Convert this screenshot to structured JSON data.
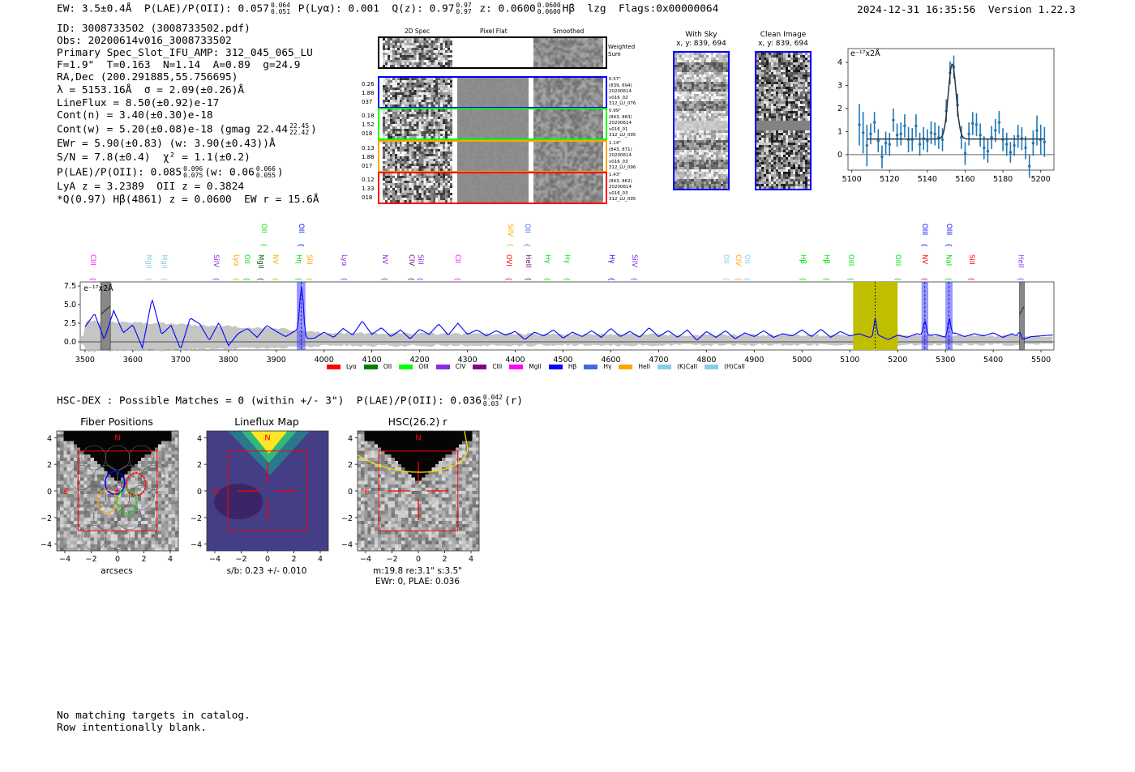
{
  "header": {
    "ew": "EW: 3.5±0.4Å",
    "plae": "P(LAE)/P(OII): 0.057",
    "plae_hi": "0.064",
    "plae_lo": "0.051",
    "plya": "P(Lyα): 0.001",
    "qz": "Q(z): 0.97",
    "qz_hi": "0.97",
    "qz_lo": "0.97",
    "z": "z: 0.0600",
    "z_hi": "0.0600",
    "z_lo": "0.0600",
    "line": "Hβ",
    "tag": "lzg",
    "flags": "Flags:0x00000064",
    "timestamp": "2024-12-31 16:35:56",
    "version": "Version 1.22.3"
  },
  "info": {
    "id": "ID: 3008733502 (3008733502.pdf)",
    "obs": "Obs: 20200614v016_3008733502",
    "primary": "Primary Spec_Slot_IFU_AMP: 312_045_065_LU",
    "fiber": "F=1.9\"  T=0.163  N=1.14  A=0.89  g=24.9",
    "radec": "RA,Dec (200.291885,55.756695)",
    "lambda": "λ = 5153.16Å  σ = 2.09(±0.26)Å",
    "lineflux": "LineFlux = 8.50(±0.92)e-17",
    "contn": "Cont(n) = 3.40(±0.30)e-18",
    "contw": "Cont(w) = 5.20(±0.08)e-18 (gmag 22.44",
    "contw_hi": "22.45",
    "contw_lo": "22.42",
    "contw_end": ")",
    "ewr": "EWr = 5.90(±0.83) (w: 3.90(±0.43))Å",
    "sn": "S/N = 7.8(±0.4)  χ² = 1.1(±0.2)",
    "plae": "P(LAE)/P(OII): 0.085",
    "plae_hi": "0.096",
    "plae_lo": "0.075",
    "plae_mid": "(w: 0.06",
    "plaew_hi": "0.066",
    "plaew_lo": "0.055",
    "plae_end": ")",
    "z": "LyA z = 3.2389  OII z = 0.3824",
    "q": "*Q(0.97) Hβ(4861) z = 0.0600  EW r = 15.6Å"
  },
  "spec2d": {
    "columns": [
      "2D Spec",
      "Pixel Flat",
      "Smoothed"
    ],
    "weighted_sum": "Weighted Sum",
    "rows": [
      {
        "color": "#0000ff",
        "left": [
          "0.26",
          "1.88",
          "037"
        ],
        "right": [
          "0.57\"",
          "(839, 694)",
          "20200614",
          "v016_02",
          "312_LU_076"
        ]
      },
      {
        "color": "#00ff00",
        "left": [
          "0.18",
          "1.52",
          "018"
        ],
        "right": [
          "0.99\"",
          "(843, 863)",
          "20200614",
          "v016_01",
          "312_LU_095"
        ]
      },
      {
        "color": "#ffa500",
        "left": [
          "0.13",
          "1.88",
          "017"
        ],
        "right": [
          "1.14\"",
          "(843, 871)",
          "20200614",
          "v016_03",
          "312_LU_096"
        ]
      },
      {
        "color": "#ff0000",
        "left": [
          "0.12",
          "1.33",
          "018"
        ],
        "right": [
          "1.43\"",
          "(843, 862)",
          "20200614",
          "v016_03",
          "312_LU_095"
        ]
      }
    ]
  },
  "cutouts": {
    "with_sky": {
      "title": "With Sky",
      "xy": "x, y: 839, 694"
    },
    "clean": {
      "title": "Clean Image",
      "xy": "x, y: 839, 694"
    }
  },
  "chart_data": [
    {
      "type": "scatter",
      "title": "",
      "ylabel": "e⁻¹⁷x2Å",
      "xlim": [
        5098,
        5207
      ],
      "ylim": [
        -0.67,
        4.6
      ],
      "xticks": [
        "5100",
        "5120",
        "5140",
        "5160",
        "5180",
        "5200"
      ],
      "yticks": [
        "0",
        "1",
        "2",
        "3",
        "4"
      ],
      "x_start": 5104,
      "x_step": 2,
      "values": [
        1.3,
        0.95,
        0.4,
        0.9,
        1.4,
        0.6,
        -0.1,
        0.5,
        0.45,
        1.5,
        0.85,
        0.9,
        1.25,
        0.65,
        0.65,
        1.25,
        0.45,
        0.7,
        0.6,
        0.95,
        0.9,
        0.75,
        0.65,
        1.9,
        3.55,
        3.8,
        2.15,
        0.75,
        0.05,
        0.9,
        1.35,
        1.3,
        0.85,
        0.3,
        0.15,
        0.75,
        1.05,
        1.4,
        0.65,
        0.45,
        0.1,
        0.4,
        0.8,
        0.7,
        0.3,
        -0.5,
        0.5,
        1.05,
        0.65,
        0.55
      ],
      "errors": [
        0.9,
        0.9,
        0.9,
        0.45,
        0.45,
        0.5,
        0.5,
        0.5,
        0.5,
        0.5,
        0.5,
        0.5,
        0.5,
        0.55,
        0.5,
        0.5,
        0.5,
        0.5,
        0.5,
        0.5,
        0.5,
        0.5,
        0.5,
        0.5,
        0.5,
        0.5,
        0.5,
        0.5,
        0.5,
        0.5,
        0.5,
        0.5,
        0.5,
        0.5,
        0.5,
        0.5,
        0.5,
        0.5,
        0.5,
        0.5,
        0.45,
        0.45,
        0.5,
        0.5,
        0.5,
        0.5,
        0.55,
        0.65,
        0.65,
        0.65
      ],
      "fit": {
        "continuum": 0.68,
        "center": 5153.16,
        "amplitude": 3.25,
        "sigma": 2.09,
        "range": [
          5108,
          5202
        ]
      }
    },
    {
      "type": "line",
      "title": "",
      "ylabel": "e⁻¹⁷x2Å",
      "xlim": [
        3490,
        5527
      ],
      "ylim": [
        -1.09,
        8.05
      ],
      "xticks": [
        "3500",
        "3600",
        "3700",
        "3800",
        "3900",
        "4000",
        "4100",
        "4200",
        "4300",
        "4400",
        "4500",
        "4600",
        "4700",
        "4800",
        "4900",
        "5000",
        "5100",
        "5200",
        "5300",
        "5400",
        "5500"
      ],
      "yticks": [
        "0.0",
        "2.5",
        "5.0",
        "7.5"
      ],
      "x_start": 3500,
      "x_step": 20,
      "values": [
        2.0,
        3.8,
        0.3,
        4.2,
        1.2,
        2.3,
        -0.8,
        5.8,
        1.0,
        2.2,
        -1.0,
        3.2,
        2.4,
        0.2,
        2.6,
        -0.5,
        1.1,
        1.8,
        0.6,
        2.2,
        1.4,
        0.7,
        1.5,
        0.4,
        0.5,
        1.3,
        0.6,
        1.8,
        0.9,
        2.8,
        1.0,
        1.9,
        0.7,
        1.6,
        0.4,
        1.7,
        1.0,
        2.4,
        0.9,
        2.5,
        1.0,
        1.6,
        0.8,
        1.5,
        0.9,
        1.4,
        0.3,
        1.3,
        0.8,
        1.6,
        0.5,
        1.3,
        0.7,
        1.5,
        0.6,
        1.8,
        0.7,
        1.4,
        0.6,
        1.9,
        0.7,
        1.5,
        0.6,
        1.6,
        0.2,
        1.4,
        0.6,
        1.5,
        0.4,
        1.2,
        0.7,
        1.5,
        0.6,
        1.1,
        0.8,
        1.6,
        0.7,
        1.7,
        0.6,
        1.4,
        0.8,
        1.1,
        0.6,
        0.9,
        0.3,
        0.9,
        0.6,
        1.1,
        0.8,
        1.0,
        0.6,
        1.2,
        0.7,
        1.1,
        0.8,
        1.2,
        0.6,
        1.1,
        0.3,
        0.7,
        0.8,
        0.9
      ],
      "peaks": [
        {
          "center": 3953,
          "amplitude": 6.5,
          "sigma": 4
        },
        {
          "center": 5153,
          "amplitude": 2.4,
          "sigma": 2.5
        },
        {
          "center": 5257,
          "amplitude": 2.0,
          "sigma": 3
        },
        {
          "center": 5308,
          "amplitude": 2.3,
          "sigma": 3
        },
        {
          "center": 5455,
          "amplitude": 0.8,
          "sigma": 3
        }
      ],
      "error_band": [
        [
          3500,
          2.8
        ],
        [
          3700,
          2.4
        ],
        [
          3940,
          1.6
        ],
        [
          3990,
          1.2
        ],
        [
          4500,
          1.0
        ],
        [
          5000,
          0.9
        ],
        [
          5527,
          0.8
        ]
      ],
      "highlight_band": {
        "range": [
          5107,
          5200
        ],
        "color": "#bfbf00",
        "center": 5153
      },
      "line_bands": [
        [
          3943,
          3961
        ],
        [
          5250,
          5264
        ],
        [
          5300,
          5315
        ]
      ],
      "masked_bands": [
        [
          3533,
          3553
        ],
        [
          5455,
          5465
        ]
      ],
      "line_labels_top": [
        {
          "label": "OII",
          "wave": 3875,
          "color": "#00dd00"
        },
        {
          "label": "OII",
          "wave": 3953,
          "color": "#0000ff"
        },
        {
          "label": "SiIV",
          "wave": 4391,
          "color": "#ffa500"
        },
        {
          "label": "OII",
          "wave": 4426,
          "color": "#4169e1"
        },
        {
          "label": "OIII",
          "wave": 5257,
          "color": "#0000ff"
        },
        {
          "label": "OIII",
          "wave": 5308,
          "color": "#0000ff"
        }
      ],
      "line_labels": [
        {
          "label": "CIII",
          "wave": 3517,
          "color": "#ff00ff"
        },
        {
          "label": "MgII",
          "wave": 3634,
          "color": "#87ceeb"
        },
        {
          "label": "MgII",
          "wave": 3666,
          "color": "#87ceeb"
        },
        {
          "label": "SiIV",
          "wave": 3775,
          "color": "#8a2be2"
        },
        {
          "label": "Lyα",
          "wave": 3817,
          "color": "#ffa500"
        },
        {
          "label": "OII",
          "wave": 3839,
          "color": "#00dd00"
        },
        {
          "label": "MgII",
          "wave": 3868,
          "color": "#006400"
        },
        {
          "label": "NV",
          "wave": 3899,
          "color": "#ffa500"
        },
        {
          "label": "Hη",
          "wave": 3948,
          "color": "#00dd00"
        },
        {
          "label": "SiII",
          "wave": 3970,
          "color": "#ffa500"
        },
        {
          "label": "Lyα",
          "wave": 4043,
          "color": "#8a2be2"
        },
        {
          "label": "NV",
          "wave": 4128,
          "color": "#8a2be2"
        },
        {
          "label": "CIV",
          "wave": 4184,
          "color": "#800080"
        },
        {
          "label": "SiII",
          "wave": 4202,
          "color": "#8a2be2"
        },
        {
          "label": "CII",
          "wave": 4280,
          "color": "#ff00ff"
        },
        {
          "label": "OVI",
          "wave": 4387,
          "color": "#ff0000"
        },
        {
          "label": "HeII",
          "wave": 4428,
          "color": "#800080"
        },
        {
          "label": "Hγ",
          "wave": 4469,
          "color": "#00dd00"
        },
        {
          "label": "Hγ",
          "wave": 4509,
          "color": "#00dd00"
        },
        {
          "label": "Hγ",
          "wave": 4603,
          "color": "#0000ff"
        },
        {
          "label": "SiIV",
          "wave": 4650,
          "color": "#8a2be2"
        },
        {
          "label": "OII",
          "wave": 4842,
          "color": "#87ceeb"
        },
        {
          "label": "CIV",
          "wave": 4867,
          "color": "#ffa500"
        },
        {
          "label": "OII",
          "wave": 4886,
          "color": "#87ceeb"
        },
        {
          "label": "Hβ",
          "wave": 5003,
          "color": "#00dd00"
        },
        {
          "label": "Hβ",
          "wave": 5052,
          "color": "#00dd00"
        },
        {
          "label": "OIII",
          "wave": 5103,
          "color": "#00dd00"
        },
        {
          "label": "OIII",
          "wave": 5201,
          "color": "#00dd00"
        },
        {
          "label": "NV",
          "wave": 5257,
          "color": "#ff0000"
        },
        {
          "label": "NaI",
          "wave": 5307,
          "color": "#00dd00"
        },
        {
          "label": "SiII",
          "wave": 5356,
          "color": "#ff0000"
        },
        {
          "label": "HeII",
          "wave": 5458,
          "color": "#8a2be2"
        }
      ],
      "legend": [
        {
          "label": "Lyα",
          "color": "#ff0000"
        },
        {
          "label": "OII",
          "color": "#008000"
        },
        {
          "label": "OIII",
          "color": "#00ff00"
        },
        {
          "label": "CIV",
          "color": "#8a2be2"
        },
        {
          "label": "CIII",
          "color": "#800080"
        },
        {
          "label": "MgII",
          "color": "#ff00ff"
        },
        {
          "label": "Hβ",
          "color": "#0000ff"
        },
        {
          "label": "Hγ",
          "color": "#4169e1"
        },
        {
          "label": "HeII",
          "color": "#ffa500"
        },
        {
          "label": "(K)CaII",
          "color": "#87ceeb"
        },
        {
          "label": "(H)CaII",
          "color": "#87ceeb"
        }
      ]
    }
  ],
  "hsc": {
    "summary": "HSC-DEX : Possible Matches = 0 (within +/- 3\")  P(LAE)/P(OII): 0.036",
    "hi": "0.042",
    "lo": "0.03",
    "end": "(r)",
    "axis_ticks": [
      "4",
      "2",
      "0",
      "−2",
      "−4"
    ],
    "x_ticks": [
      "−4",
      "−2",
      "0",
      "2",
      "4"
    ],
    "north": "N",
    "east": "E",
    "panels": [
      {
        "title": "Fiber Positions",
        "caption1": "arcsecs",
        "caption2": ""
      },
      {
        "title": "Lineflux Map",
        "caption1": "s/b: 0.23 +/- 0.010",
        "caption2": ""
      },
      {
        "title": "HSC(26.2) r",
        "caption1": "m:19.8  re:3.1\"  s:3.5\"",
        "caption2": "EWr: 0, PLAE: 0.036"
      }
    ]
  },
  "footer": {
    "line1": "No matching targets in catalog.",
    "line2": "Row intentionally blank."
  }
}
